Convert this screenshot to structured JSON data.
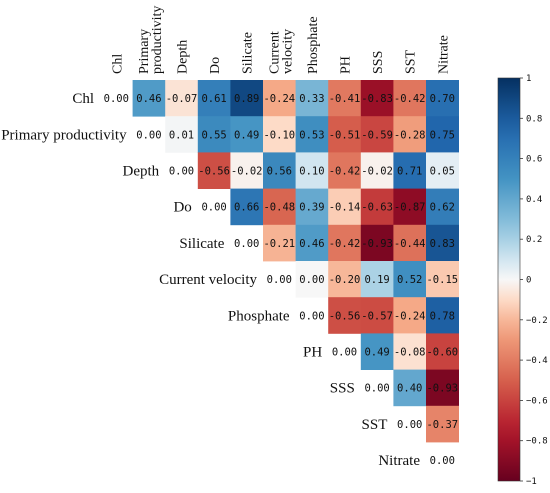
{
  "chart_data": {
    "type": "heatmap",
    "variables": [
      "Chl",
      "Primary productivity",
      "Depth",
      "Do",
      "Silicate",
      "Current velocity",
      "Phosphate",
      "PH",
      "SSS",
      "SST",
      "Nitrate"
    ],
    "column_labels": [
      [
        "Chl"
      ],
      [
        "Primary",
        "productivity"
      ],
      [
        "Depth"
      ],
      [
        "Do"
      ],
      [
        "Silicate"
      ],
      [
        "Current",
        "velocity"
      ],
      [
        "Phosphate"
      ],
      [
        "PH"
      ],
      [
        "SSS"
      ],
      [
        "SST"
      ],
      [
        "Nitrate"
      ]
    ],
    "matrix": [
      [
        0.0,
        0.46,
        -0.07,
        0.61,
        0.89,
        -0.24,
        0.33,
        -0.41,
        -0.83,
        -0.42,
        0.7
      ],
      [
        null,
        0.0,
        0.01,
        0.55,
        0.49,
        -0.1,
        0.53,
        -0.51,
        -0.59,
        -0.28,
        0.75
      ],
      [
        null,
        null,
        0.0,
        -0.56,
        -0.02,
        0.56,
        0.1,
        -0.42,
        -0.02,
        0.71,
        0.05
      ],
      [
        null,
        null,
        null,
        0.0,
        0.66,
        -0.48,
        0.39,
        -0.14,
        -0.63,
        -0.87,
        0.62
      ],
      [
        null,
        null,
        null,
        null,
        0.0,
        -0.21,
        0.46,
        -0.42,
        -0.93,
        -0.44,
        0.83
      ],
      [
        null,
        null,
        null,
        null,
        null,
        0.0,
        0.0,
        -0.2,
        0.19,
        0.52,
        -0.15
      ],
      [
        null,
        null,
        null,
        null,
        null,
        null,
        0.0,
        -0.56,
        -0.57,
        -0.24,
        0.78
      ],
      [
        null,
        null,
        null,
        null,
        null,
        null,
        null,
        0.0,
        0.49,
        -0.08,
        -0.6
      ],
      [
        null,
        null,
        null,
        null,
        null,
        null,
        null,
        null,
        0.0,
        0.4,
        -0.93
      ],
      [
        null,
        null,
        null,
        null,
        null,
        null,
        null,
        null,
        null,
        0.0,
        -0.37
      ],
      [
        null,
        null,
        null,
        null,
        null,
        null,
        null,
        null,
        null,
        null,
        0.0
      ]
    ],
    "colorbar": {
      "min": -1,
      "max": 1,
      "ticks": [
        1,
        0.8,
        0.6,
        0.4,
        0.2,
        0,
        -0.2,
        -0.4,
        -0.6,
        -0.8,
        -1
      ],
      "colors": {
        "negative": "#67001f",
        "neutral": "#f7f7f7",
        "positive": "#053061"
      }
    }
  }
}
